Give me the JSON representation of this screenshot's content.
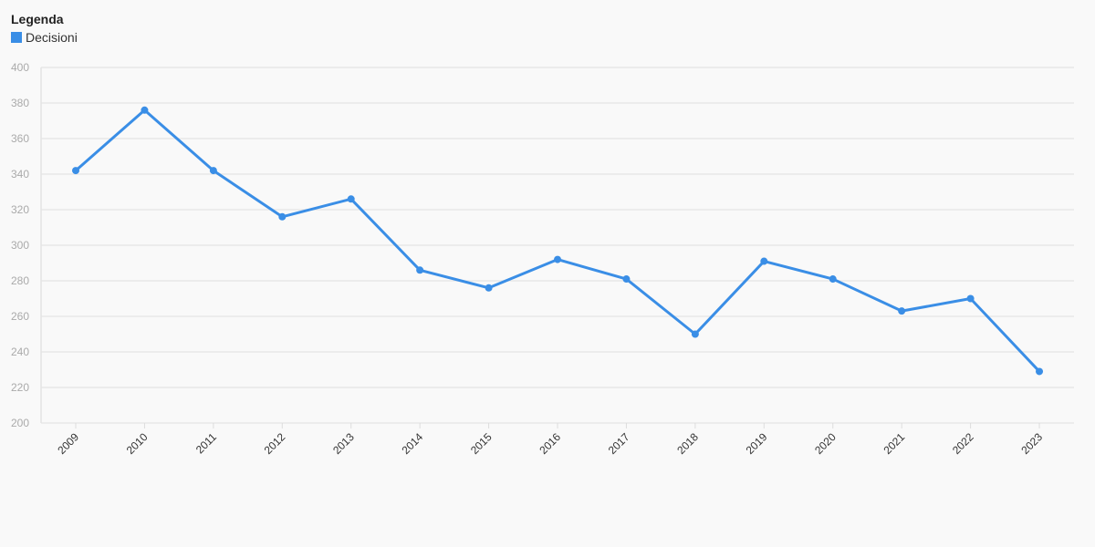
{
  "legend": {
    "title": "Legenda",
    "items": [
      {
        "label": "Decisioni",
        "color": "#3a8ee6"
      }
    ]
  },
  "chart_data": {
    "type": "line",
    "categories": [
      "2009",
      "2010",
      "2011",
      "2012",
      "2013",
      "2014",
      "2015",
      "2016",
      "2017",
      "2018",
      "2019",
      "2020",
      "2021",
      "2022",
      "2023"
    ],
    "series": [
      {
        "name": "Decisioni",
        "color": "#3a8ee6",
        "values": [
          342,
          376,
          342,
          316,
          326,
          286,
          276,
          292,
          281,
          250,
          291,
          281,
          263,
          270,
          229
        ]
      }
    ],
    "ylim": [
      200,
      400
    ],
    "yticks": [
      200,
      220,
      240,
      260,
      280,
      300,
      320,
      340,
      360,
      380,
      400
    ],
    "grid": true,
    "legend_position": "top-left",
    "title": "",
    "xlabel": "",
    "ylabel": ""
  }
}
